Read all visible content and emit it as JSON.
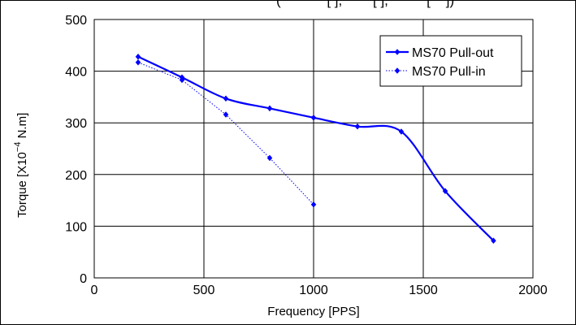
{
  "top_text": "(            [ ],        [ ],          [    ])",
  "chart_data": {
    "type": "line",
    "xlabel": "Frequency [PPS]",
    "ylabel": {
      "prefix": "Torque [X10",
      "sup": "−4",
      "suffix": "  N.m]"
    },
    "xlim": [
      0,
      2000
    ],
    "ylim": [
      0,
      500
    ],
    "xticks": [
      0,
      500,
      1000,
      1500,
      2000
    ],
    "yticks": [
      0,
      100,
      200,
      300,
      400,
      500
    ],
    "grid": true,
    "legend_position": "top-right",
    "series": [
      {
        "name": "MS70 Pull-out",
        "style": "solid",
        "smooth": true,
        "color": "#0000ff",
        "x": [
          200,
          400,
          600,
          800,
          1000,
          1200,
          1400,
          1600,
          1820
        ],
        "y": [
          428,
          388,
          347,
          328,
          310,
          293,
          283,
          168,
          72
        ]
      },
      {
        "name": "MS70 Pull-in",
        "style": "dotted",
        "smooth": false,
        "color": "#0000ff",
        "x": [
          200,
          400,
          600,
          800,
          1000
        ],
        "y": [
          417,
          383,
          316,
          232,
          142
        ]
      }
    ]
  }
}
